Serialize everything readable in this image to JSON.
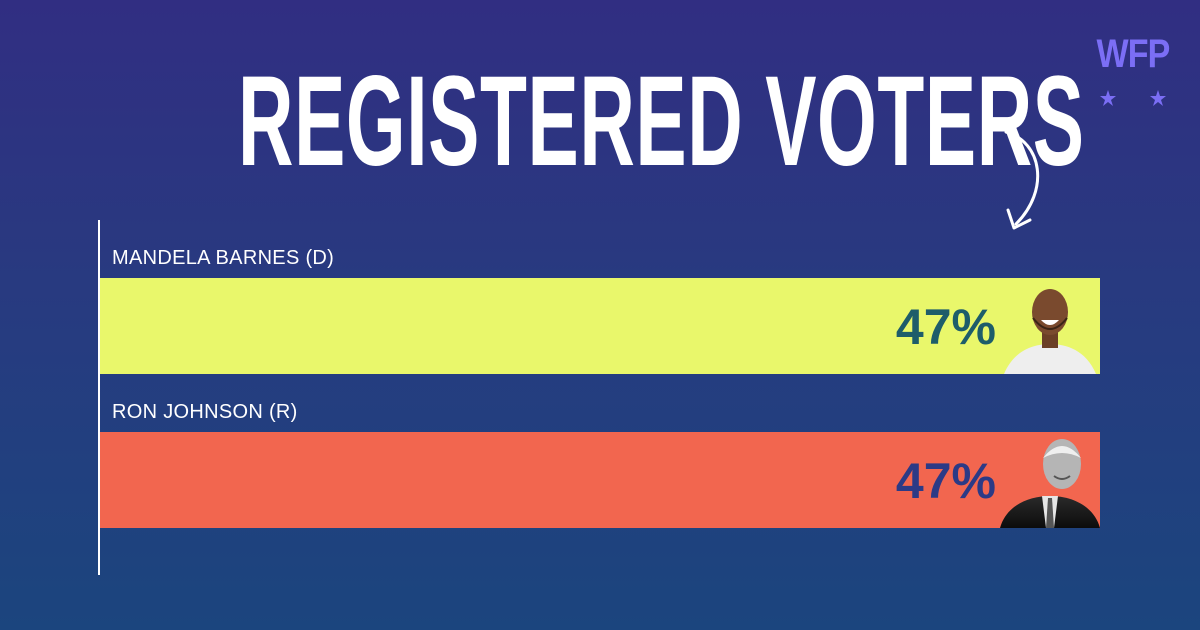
{
  "title": "REGISTERED VOTERS",
  "logo": {
    "text": "WFP"
  },
  "colors": {
    "background_top": "#312e82",
    "background_bottom": "#1b457e",
    "barnes_bar": "#e9f76b",
    "johnson_bar": "#f2664f",
    "barnes_value_text": "#1e5d6a",
    "johnson_value_text": "#2c3a86",
    "logo": "#7b6ef5"
  },
  "chart_data": {
    "type": "bar",
    "orientation": "horizontal",
    "title": "REGISTERED VOTERS",
    "categories": [
      "MANDELA BARNES (D)",
      "RON JOHNSON (R)"
    ],
    "values": [
      47,
      47
    ],
    "value_labels": [
      "47%",
      "47%"
    ],
    "units": "%",
    "xlim": [
      0,
      47
    ],
    "grid": false,
    "legend": "none",
    "series": [
      {
        "values": [
          47,
          47
        ]
      }
    ]
  }
}
